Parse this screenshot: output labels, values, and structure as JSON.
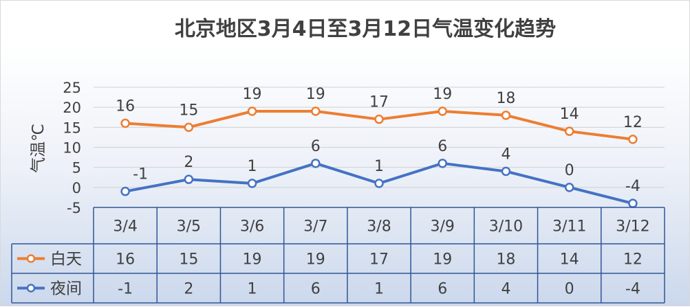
{
  "chart_data": {
    "type": "line",
    "title": "北京地区3月4日至3月12日气温变化趋势",
    "ylabel": "气温℃",
    "xlabel": "",
    "ylim": [
      -5,
      25
    ],
    "yticks": [
      25,
      20,
      15,
      10,
      5,
      0,
      -5
    ],
    "categories": [
      "3/4",
      "3/5",
      "3/6",
      "3/7",
      "3/8",
      "3/9",
      "3/10",
      "3/11",
      "3/12"
    ],
    "grid": true,
    "legend": "data-table",
    "series": [
      {
        "name": "白天",
        "color": "#ed7d31",
        "values": [
          16,
          15,
          19,
          19,
          17,
          19,
          18,
          14,
          12
        ]
      },
      {
        "name": "夜间",
        "color": "#4472c4",
        "values": [
          -1,
          2,
          1,
          6,
          1,
          6,
          4,
          0,
          -4
        ]
      }
    ]
  }
}
